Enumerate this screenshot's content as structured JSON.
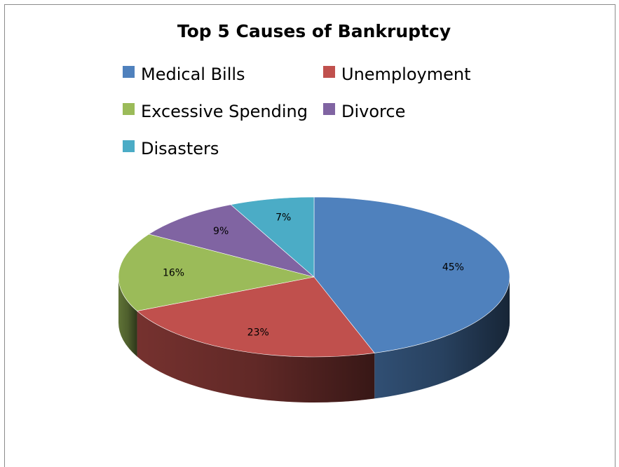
{
  "chart_data": {
    "type": "pie",
    "title": "Top 5 Causes of Bankruptcy",
    "categories": [
      "Medical Bills",
      "Unemployment",
      "Excessive Spending",
      "Divorce",
      "Disasters"
    ],
    "values": [
      45,
      23,
      16,
      9,
      7
    ],
    "labels": [
      "45%",
      "23%",
      "16%",
      "9%",
      "7%"
    ],
    "colors": [
      "#4F81BD",
      "#C0504D",
      "#9BBB59",
      "#8064A2",
      "#4BACC6"
    ],
    "legend": "top",
    "style": "3d"
  }
}
